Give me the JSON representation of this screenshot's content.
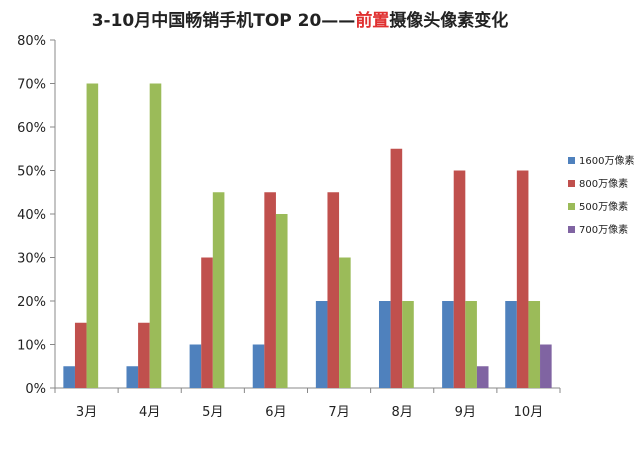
{
  "chart_data": {
    "type": "bar",
    "title_part1": "3-10月中国畅销手机TOP 20——",
    "title_highlight": "前置",
    "title_part2": "摄像头像素变化",
    "categories": [
      "3月",
      "4月",
      "5月",
      "6月",
      "7月",
      "8月",
      "9月",
      "10月"
    ],
    "y_ticks": [
      "0%",
      "10%",
      "20%",
      "30%",
      "40%",
      "50%",
      "60%",
      "70%",
      "80%"
    ],
    "ylim": [
      0,
      80
    ],
    "grid": false,
    "legend_position": "right",
    "series": [
      {
        "name": "1600万像素",
        "color": "#4f81bd",
        "values": [
          5,
          5,
          10,
          10,
          20,
          20,
          20,
          20
        ]
      },
      {
        "name": "800万像素",
        "color": "#c0504d",
        "values": [
          15,
          15,
          30,
          45,
          45,
          55,
          50,
          50
        ]
      },
      {
        "name": "500万像素",
        "color": "#9bbb59",
        "values": [
          70,
          70,
          45,
          40,
          30,
          20,
          20,
          20
        ]
      },
      {
        "name": "700万像素",
        "color": "#8064a2",
        "values": [
          0,
          0,
          0,
          0,
          0,
          0,
          5,
          10
        ]
      }
    ]
  }
}
